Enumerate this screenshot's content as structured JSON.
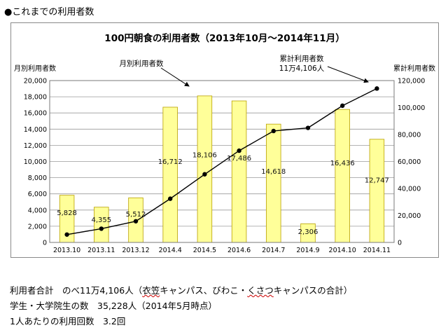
{
  "heading": "●これまでの利用者数",
  "chart_data": {
    "type": "bar",
    "title": "100円朝食の利用者数（2013年10月～2014年11月）",
    "categories": [
      "2013.10",
      "2013.11",
      "2013.12",
      "2014.4",
      "2014.5",
      "2014.6",
      "2014.7",
      "2014.9",
      "2014.10",
      "2014.11"
    ],
    "y_left": {
      "label": "月別利用者数",
      "ylim": [
        0,
        20000
      ],
      "ticks": [
        0,
        2000,
        4000,
        6000,
        8000,
        10000,
        12000,
        14000,
        16000,
        18000,
        20000
      ],
      "tick_labels": [
        "0",
        "2,000",
        "4,000",
        "6,000",
        "8,000",
        "10,000",
        "12,000",
        "14,000",
        "16,000",
        "18,000",
        "20,000"
      ]
    },
    "y_right": {
      "label": "累計利用者数",
      "ylim": [
        0,
        120000
      ],
      "ticks": [
        0,
        20000,
        40000,
        60000,
        80000,
        100000,
        120000
      ],
      "tick_labels": [
        "0",
        "20,000",
        "40,000",
        "60,000",
        "80,000",
        "100,000",
        "120,000"
      ]
    },
    "series": [
      {
        "name": "月別利用者数",
        "type": "bar",
        "axis": "left",
        "color": "#ffff99",
        "border": "#b8a000",
        "values": [
          5828,
          4355,
          5512,
          16712,
          18106,
          17486,
          14618,
          2306,
          16436,
          12747
        ],
        "labels": [
          "5,828",
          "4,355",
          "5,512",
          "16,712",
          "18,106",
          "17,486",
          "14,618",
          "2,306",
          "16,436",
          "12,747"
        ]
      },
      {
        "name": "累計利用者数",
        "type": "line",
        "axis": "right",
        "color": "#000000",
        "values": [
          5828,
          10183,
          15695,
          32407,
          50513,
          67999,
          82617,
          84923,
          101359,
          114106
        ]
      }
    ],
    "annotations": {
      "monthly": "月別利用者数",
      "cumulative_line1": "累計利用者数",
      "cumulative_line2": "11万4,106人"
    },
    "grid": true
  },
  "notes": {
    "line1_prefix": "利用者合計　のべ11万4,106人（",
    "line1_mid1": "衣笠",
    "line1_mid2": "キャンパス、びわこ・",
    "line1_mid3": "くさつ",
    "line1_suffix": "キャンパスの合計）",
    "line2": "学生・大学院生の数　35,228人（2014年5月時点）",
    "line3": "1人あたりの利用回数　3.2回"
  }
}
